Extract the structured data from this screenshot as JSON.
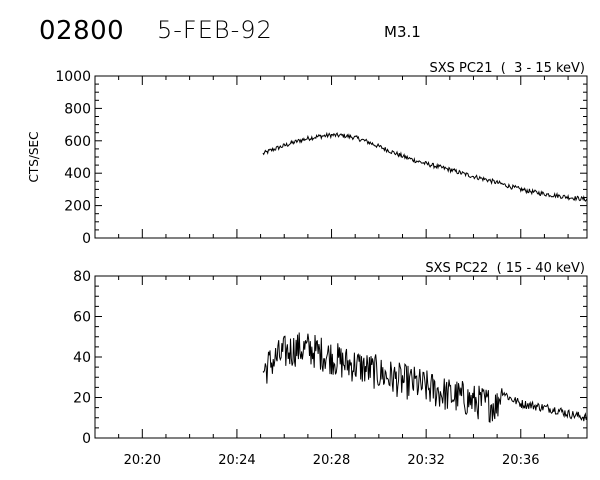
{
  "header": {
    "event_id": "02800",
    "date": "5-FEB-92",
    "flare_class": "M3.1"
  },
  "chart_data": [
    {
      "type": "line",
      "title": "SXS PC21  (  3 - 15 keV)",
      "ylabel": "CTS/SEC",
      "xlabel": "",
      "ylim": [
        0,
        1000
      ],
      "yticks": [
        0,
        200,
        400,
        600,
        800,
        1000
      ],
      "ytick_labels": [
        "0",
        "200",
        "400",
        "600",
        "800",
        "1000"
      ],
      "xlim": [
        "20:18:00",
        "20:38:48"
      ],
      "xticks": [
        "20:20",
        "20:24",
        "20:28",
        "20:32",
        "20:36"
      ],
      "xtick_labels": [],
      "series": [
        {
          "x": [
            "20:25:06",
            "20:25:30",
            "20:26:00",
            "20:26:30",
            "20:27:00",
            "20:27:30",
            "20:28:00",
            "20:28:30",
            "20:29:00",
            "20:29:30",
            "20:30:00",
            "20:30:30",
            "20:31:00",
            "20:31:30",
            "20:32:00",
            "20:32:30",
            "20:33:00",
            "20:33:30",
            "20:34:00",
            "20:34:30",
            "20:35:00",
            "20:35:30",
            "20:36:00",
            "20:36:30",
            "20:37:00",
            "20:37:30",
            "20:38:00",
            "20:38:48"
          ],
          "values": [
            520,
            545,
            570,
            595,
            615,
            628,
            635,
            632,
            620,
            595,
            565,
            535,
            505,
            480,
            458,
            440,
            422,
            400,
            380,
            362,
            342,
            320,
            300,
            285,
            272,
            262,
            252,
            238
          ]
        }
      ]
    },
    {
      "type": "line",
      "title": "SXS PC22  ( 15 - 40 keV)",
      "ylabel": "",
      "xlabel": "",
      "ylim": [
        0,
        80
      ],
      "yticks": [
        0,
        20,
        40,
        60,
        80
      ],
      "ytick_labels": [
        "0",
        "20",
        "40",
        "60",
        "80"
      ],
      "xlim": [
        "20:18:00",
        "20:38:48"
      ],
      "xticks": [
        "20:20",
        "20:24",
        "20:28",
        "20:32",
        "20:36"
      ],
      "xtick_labels": [
        "20:20",
        "20:24",
        "20:28",
        "20:32",
        "20:36"
      ],
      "series": [
        {
          "x": [
            "20:25:06",
            "20:25:30",
            "20:26:00",
            "20:26:30",
            "20:27:00",
            "20:27:30",
            "20:28:00",
            "20:28:30",
            "20:29:00",
            "20:29:30",
            "20:30:00",
            "20:30:30",
            "20:31:00",
            "20:31:30",
            "20:32:00",
            "20:32:30",
            "20:33:00",
            "20:33:30",
            "20:34:00",
            "20:34:30",
            "20:35:00",
            "20:35:10",
            "20:35:30",
            "20:36:00",
            "20:36:30",
            "20:37:00",
            "20:37:30",
            "20:38:00",
            "20:38:48"
          ],
          "values": [
            33,
            38,
            42,
            44,
            44,
            42,
            40,
            37,
            36,
            34,
            32,
            30,
            28,
            27,
            25,
            23,
            21,
            20,
            18,
            17,
            16,
            24,
            20,
            17,
            16,
            15,
            14,
            12,
            10
          ]
        }
      ]
    }
  ]
}
